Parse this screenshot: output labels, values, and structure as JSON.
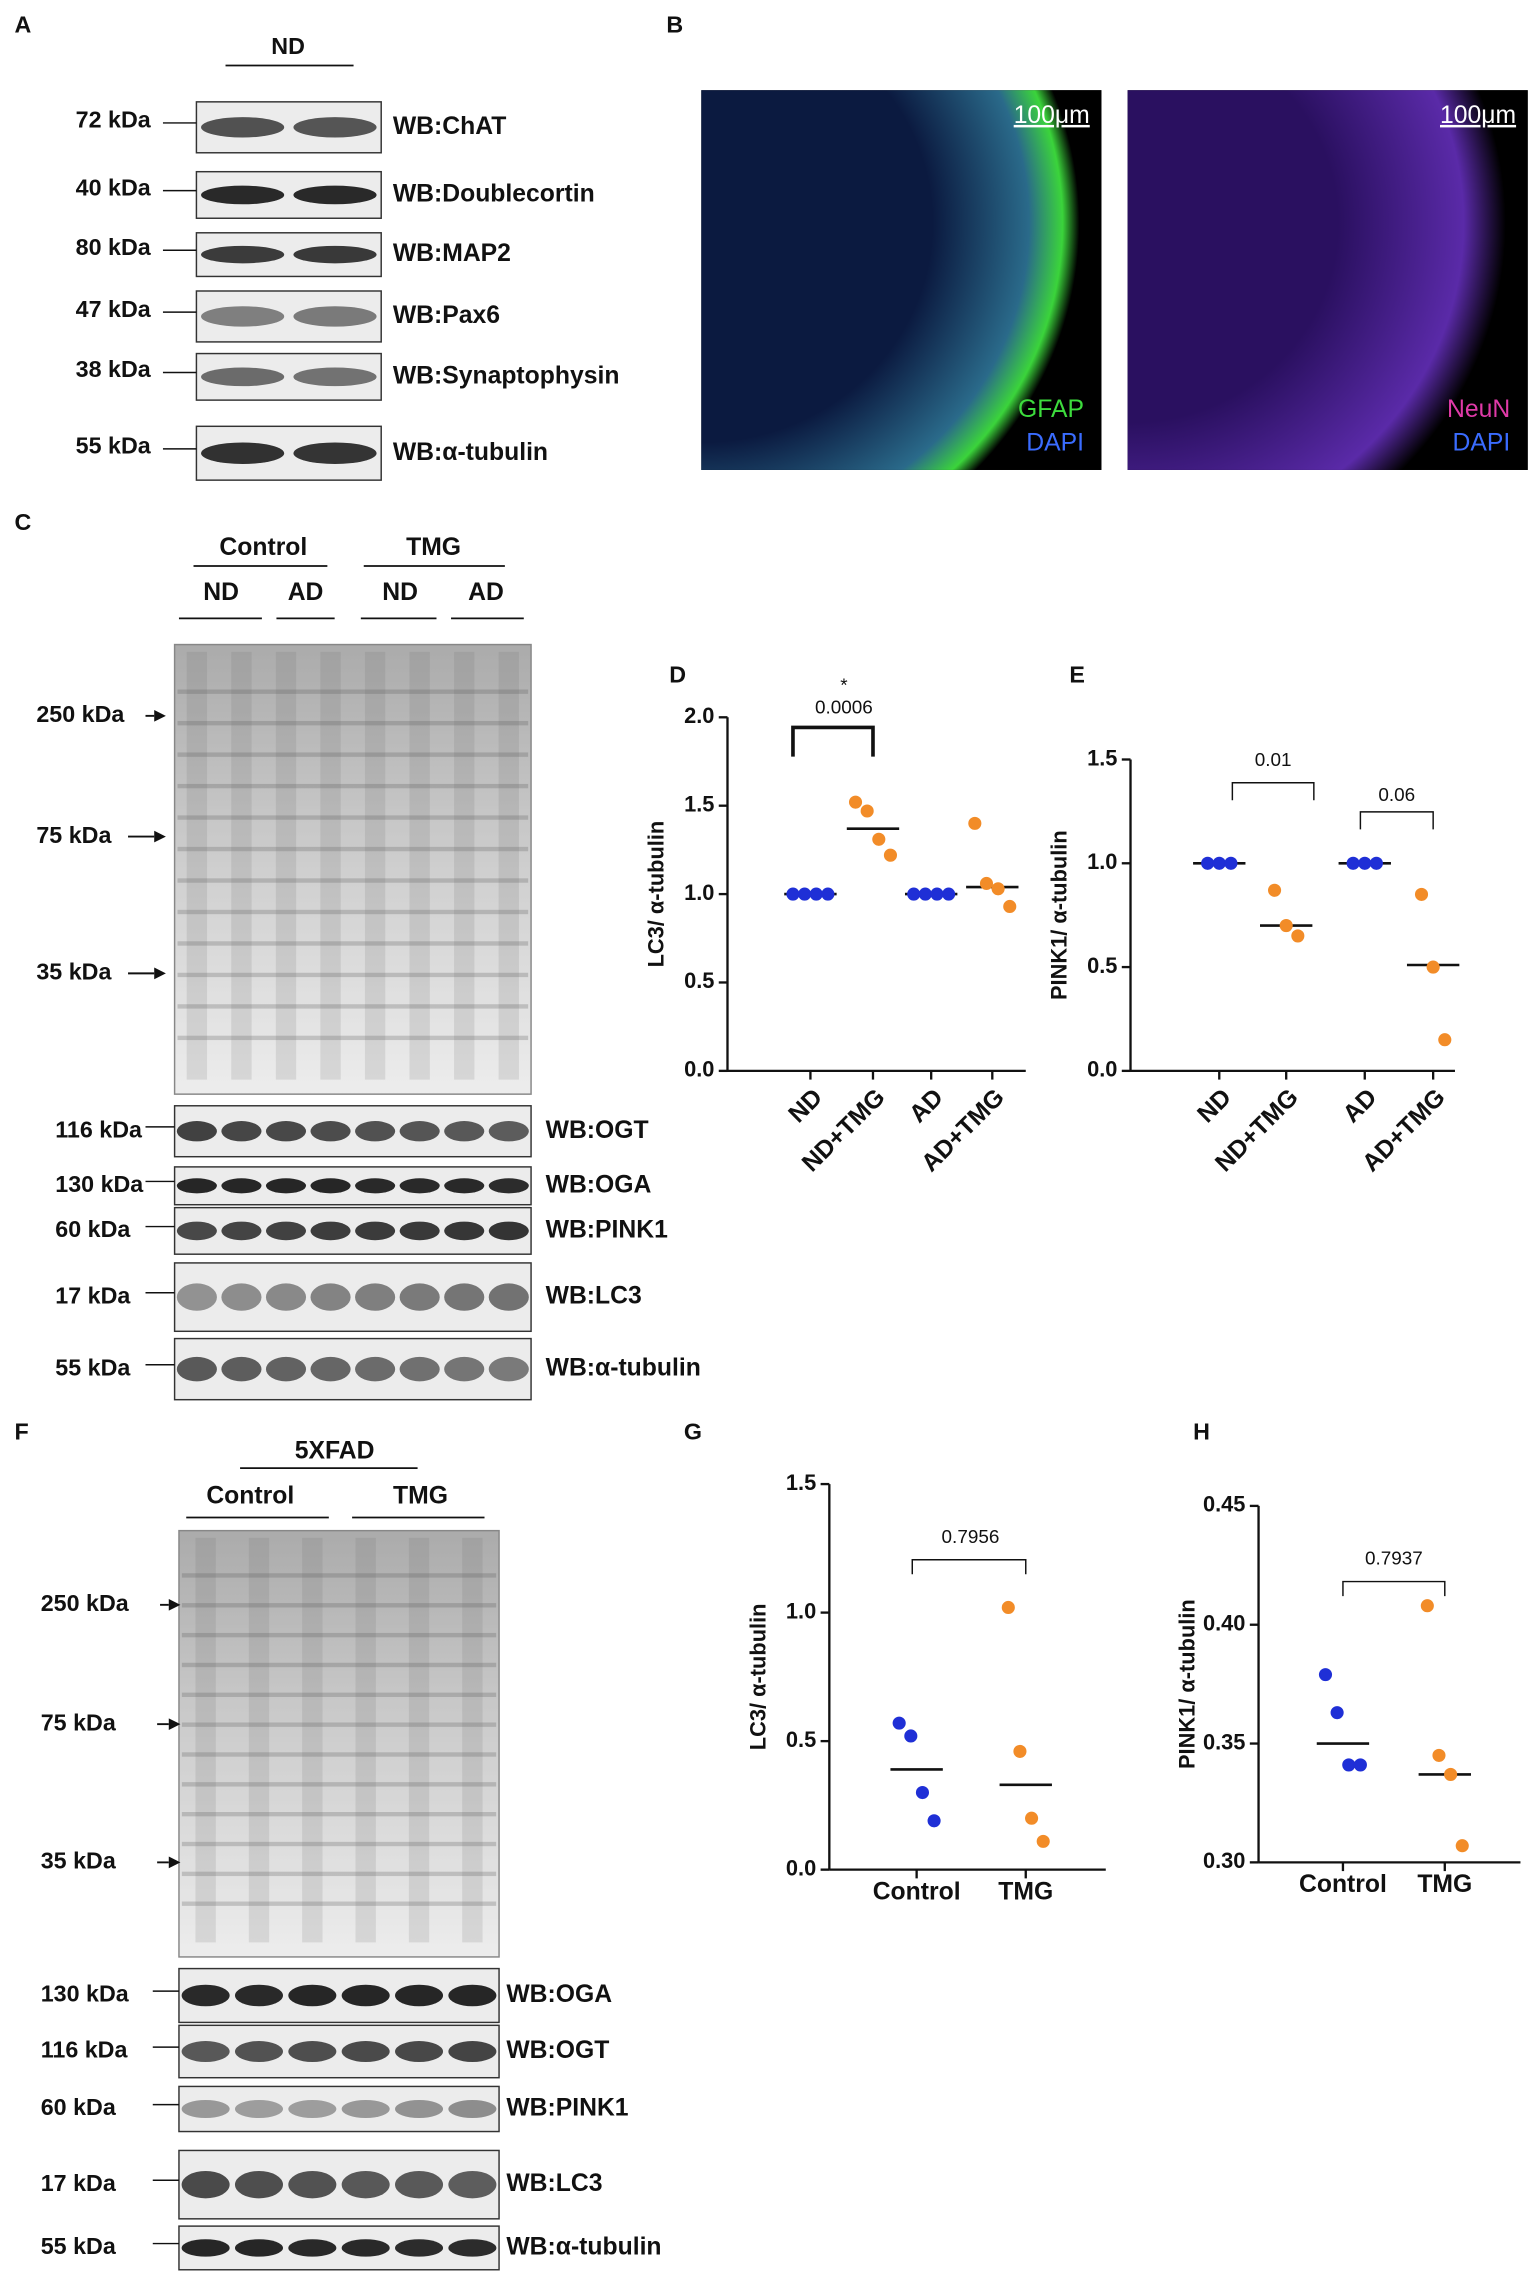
{
  "panel_a": {
    "letter": "A",
    "group": "ND",
    "blots": [
      {
        "size": "72 kDa",
        "label": "WB:ChAT"
      },
      {
        "size": "40 kDa",
        "label": "WB:Doublecortin"
      },
      {
        "size": "80 kDa",
        "label": "WB:MAP2"
      },
      {
        "size": "47 kDa",
        "label": "WB:Pax6"
      },
      {
        "size": "38 kDa",
        "label": "WB:Synaptophysin"
      },
      {
        "size": "55 kDa",
        "label": "WB:α-tubulin"
      }
    ]
  },
  "panel_b": {
    "letter": "B",
    "images": [
      {
        "scale": "100μm",
        "stains": [
          "GFAP",
          "DAPI"
        ]
      },
      {
        "scale": "100μm",
        "stains": [
          "NeuN",
          "DAPI"
        ]
      }
    ]
  },
  "panel_c": {
    "letter": "C",
    "treatments": [
      "Control",
      "TMG"
    ],
    "groups": [
      "ND",
      "AD",
      "ND",
      "AD"
    ],
    "markers": [
      "250 kDa",
      "75 kDa",
      "35 kDa"
    ],
    "blots": [
      {
        "size": "116 kDa",
        "label": "WB:OGT"
      },
      {
        "size": "130 kDa",
        "label": "WB:OGA"
      },
      {
        "size": "60 kDa",
        "label": "WB:PINK1"
      },
      {
        "size": "17 kDa",
        "label": "WB:LC3"
      },
      {
        "size": "55 kDa",
        "label": "WB:α-tubulin"
      }
    ]
  },
  "panel_f": {
    "letter": "F",
    "model": "5XFAD",
    "treatments": [
      "Control",
      "TMG"
    ],
    "markers": [
      "250 kDa",
      "75 kDa",
      "35 kDa"
    ],
    "blots": [
      {
        "size": "130 kDa",
        "label": "WB:OGA"
      },
      {
        "size": "116 kDa",
        "label": "WB:OGT"
      },
      {
        "size": "60 kDa",
        "label": "WB:PINK1"
      },
      {
        "size": "17 kDa",
        "label": "WB:LC3"
      },
      {
        "size": "55 kDa",
        "label": "WB:α-tubulin"
      }
    ]
  },
  "chart_data": [
    {
      "panel": "D",
      "type": "scatter",
      "y_label": "LC3/ α-tubulin",
      "categories": [
        "ND",
        "ND+TMG",
        "AD",
        "AD+TMG"
      ],
      "colors": [
        "#1f2fd6",
        "#f28c28",
        "#1f2fd6",
        "#f28c28"
      ],
      "values": [
        [
          1,
          1,
          1,
          1
        ],
        [
          1.52,
          1.47,
          1.31,
          1.22
        ],
        [
          1,
          1,
          1,
          1
        ],
        [
          1.4,
          1.06,
          1.03,
          0.93
        ]
      ],
      "center_lines": [
        1,
        1.37,
        1,
        1.04
      ],
      "annotations": [
        "*",
        "0.0006"
      ],
      "ylim": [
        0,
        2
      ],
      "yticks": [
        {
          "value": 0,
          "label": "0.0"
        },
        0.5,
        {
          "value": 1,
          "label": "1.0"
        },
        1.5,
        {
          "value": 2,
          "label": "2.0"
        }
      ]
    },
    {
      "panel": "E",
      "type": "scatter",
      "y_label": "PINK1/ α-tubulin",
      "categories": [
        "ND",
        "ND+TMG",
        "AD",
        "AD+TMG"
      ],
      "colors": [
        "#1f2fd6",
        "#f28c28",
        "#1f2fd6",
        "#f28c28"
      ],
      "values": [
        [
          1,
          1,
          1
        ],
        [
          0.87,
          0.7,
          0.65
        ],
        [
          1,
          1,
          1
        ],
        [
          0.85,
          0.5,
          0.15
        ]
      ],
      "center_lines": [
        1,
        0.7,
        1,
        0.51
      ],
      "annotations": [
        "0.01",
        "0.06"
      ],
      "ylim": [
        0,
        1.5
      ],
      "yticks": [
        {
          "value": 0,
          "label": "0.0"
        },
        0.5,
        {
          "value": 1,
          "label": "1.0"
        },
        1.5
      ]
    },
    {
      "panel": "G",
      "type": "scatter",
      "y_label": "LC3/ α-tubulin",
      "categories": [
        "Control",
        "TMG"
      ],
      "colors": [
        "#1f2fd6",
        "#f28c28"
      ],
      "values": [
        [
          0.57,
          0.52,
          0.3,
          0.19
        ],
        [
          1.02,
          0.46,
          0.2,
          0.11
        ]
      ],
      "center_lines": [
        0.39,
        0.33
      ],
      "annotations": [
        "0.7956"
      ],
      "ylim": [
        0,
        1.5
      ],
      "yticks": [
        {
          "value": 0,
          "label": "0.0"
        },
        0.5,
        {
          "value": 1,
          "label": "1.0"
        },
        1.5
      ]
    },
    {
      "panel": "H",
      "type": "scatter",
      "y_label": "PINK1/ α-tubulin",
      "categories": [
        "Control",
        "TMG"
      ],
      "colors": [
        "#1f2fd6",
        "#f28c28"
      ],
      "values": [
        [
          0.379,
          0.363,
          0.341,
          0.341
        ],
        [
          0.408,
          0.345,
          0.337,
          0.307
        ]
      ],
      "center_lines": [
        0.35,
        0.337
      ],
      "annotations": [
        "0.7937"
      ],
      "ylim": [
        0.3,
        0.45
      ],
      "yticks": [
        {
          "value": 0.3,
          "label": "0.30"
        },
        0.35,
        {
          "value": 0.4,
          "label": "0.40"
        },
        0.45
      ]
    }
  ]
}
